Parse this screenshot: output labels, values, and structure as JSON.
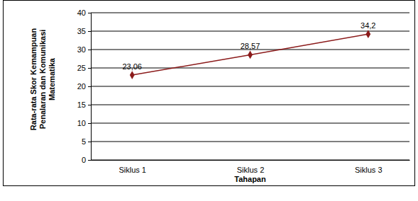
{
  "chart_data": {
    "type": "line",
    "categories": [
      "Siklus 1",
      "Siklus 2",
      "Siklus 3"
    ],
    "values": [
      23.06,
      28.57,
      34.2
    ],
    "value_labels": [
      "23,06",
      "28,57",
      "34,2"
    ],
    "data_labels": true,
    "color": "#8b1a1a",
    "marker": "diamond",
    "x_label": "Tahapan",
    "y_label": "Rata-rata Skor Kemampuan Penalaran dan Komunikasi Matematika",
    "ylim": [
      0,
      40
    ],
    "yticks": [
      0,
      5,
      10,
      15,
      20,
      25,
      30,
      35,
      40
    ],
    "grid": true
  }
}
